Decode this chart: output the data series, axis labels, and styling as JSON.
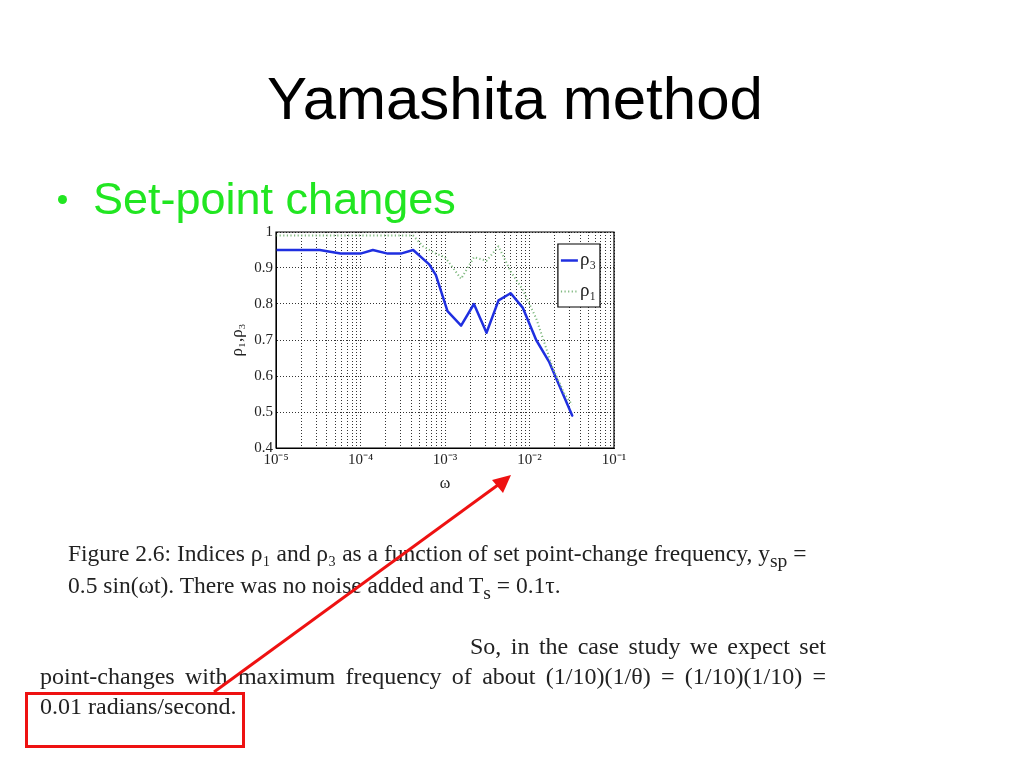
{
  "chart_data": {
    "type": "line",
    "title": "Yamashita method",
    "subtitle": "Set-point changes",
    "xlabel": "ω",
    "ylabel": "ρ₁,ρ₃",
    "log": "x",
    "xlim": [
      1e-05,
      0.1
    ],
    "xticks": [
      {
        "value": 1e-05,
        "label": "10⁻⁵"
      },
      {
        "value": 2e-05,
        "label": null
      },
      {
        "value": 3e-05,
        "label": null
      },
      {
        "value": 4e-05,
        "label": null
      },
      {
        "value": 5e-05,
        "label": null
      },
      {
        "value": 6e-05,
        "label": null
      },
      {
        "value": 7e-05,
        "label": null
      },
      {
        "value": 8e-05,
        "label": null
      },
      {
        "value": 9e-05,
        "label": null
      },
      {
        "value": 0.0001,
        "label": "10⁻⁴"
      },
      {
        "value": 0.0002,
        "label": null
      },
      {
        "value": 0.0003,
        "label": null
      },
      {
        "value": 0.0004,
        "label": null
      },
      {
        "value": 0.0005,
        "label": null
      },
      {
        "value": 0.0006,
        "label": null
      },
      {
        "value": 0.0007,
        "label": null
      },
      {
        "value": 0.0008,
        "label": null
      },
      {
        "value": 0.0009,
        "label": null
      },
      {
        "value": 0.001,
        "label": "10⁻³"
      },
      {
        "value": 0.002,
        "label": null
      },
      {
        "value": 0.003,
        "label": null
      },
      {
        "value": 0.004,
        "label": null
      },
      {
        "value": 0.005,
        "label": null
      },
      {
        "value": 0.006,
        "label": null
      },
      {
        "value": 0.007,
        "label": null
      },
      {
        "value": 0.008,
        "label": null
      },
      {
        "value": 0.009,
        "label": null
      },
      {
        "value": 0.01,
        "label": "10⁻²"
      },
      {
        "value": 0.02,
        "label": null
      },
      {
        "value": 0.03,
        "label": null
      },
      {
        "value": 0.04,
        "label": null
      },
      {
        "value": 0.05,
        "label": null
      },
      {
        "value": 0.06,
        "label": null
      },
      {
        "value": 0.07,
        "label": null
      },
      {
        "value": 0.08,
        "label": null
      },
      {
        "value": 0.09,
        "label": null
      },
      {
        "value": 0.1,
        "label": "10⁻¹"
      }
    ],
    "ylim": [
      0.4,
      1
    ],
    "yticks": [
      0.4,
      0.5,
      0.6,
      0.7,
      0.8,
      0.9,
      1
    ],
    "grid": true,
    "legend": "top right",
    "series": [
      {
        "name": "ρ₃",
        "color": "#1f2fe0",
        "line_style": "solid",
        "x": [
          1e-05,
          1.5e-05,
          3.3e-05,
          5.8e-05,
          0.0001,
          0.00014,
          0.00021,
          0.0003,
          0.00042,
          0.00065,
          0.00078,
          0.00107,
          0.00155,
          0.0022,
          0.0031,
          0.0043,
          0.006,
          0.0083,
          0.012,
          0.017,
          0.032
        ],
        "values": [
          0.95,
          0.95,
          0.95,
          0.94,
          0.94,
          0.95,
          0.94,
          0.94,
          0.95,
          0.91,
          0.88,
          0.78,
          0.74,
          0.8,
          0.72,
          0.81,
          0.83,
          0.79,
          0.7,
          0.64,
          0.49
        ]
      },
      {
        "name": "ρ₁",
        "color": "#7fb87f",
        "line_style": "dotted",
        "x": [
          1e-05,
          0.0001,
          0.0003,
          0.00042,
          0.00055,
          0.00078,
          0.001,
          0.00155,
          0.0022,
          0.0031,
          0.0043,
          0.006,
          0.0083,
          0.012,
          0.019,
          0.026,
          0.032
        ],
        "values": [
          0.99,
          0.99,
          0.99,
          0.99,
          0.96,
          0.94,
          0.93,
          0.87,
          0.93,
          0.92,
          0.96,
          0.89,
          0.84,
          0.76,
          0.62,
          0.55,
          0.52
        ]
      }
    ],
    "annotations": [
      "Figure 2.6: Indices ρ₁ and ρ₃ as a function of set point-change frequency, y$_{sp}$ = 0.5 sin(ωt). There was no noise added and T$_{s}$ = 0.1τ.",
      "So, in the case study we expect set point-changes with maximum frequency of about (1/10)(1/θ) = (1/10)(1/10) = 0.01 radians/second."
    ]
  }
}
